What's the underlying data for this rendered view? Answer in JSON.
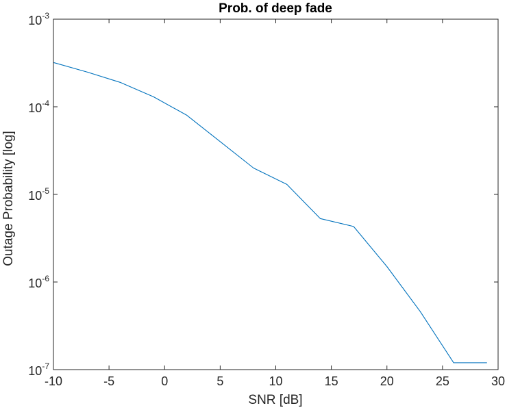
{
  "chart_data": {
    "type": "line",
    "title": "Prob. of deep fade",
    "xlabel": "SNR [dB]",
    "ylabel": "Outage Probability [log]",
    "xlim": [
      -10,
      30
    ],
    "ylim": [
      1e-07,
      0.001
    ],
    "yscale": "log",
    "grid": false,
    "x_ticks": [
      -10,
      -5,
      0,
      5,
      10,
      15,
      20,
      25,
      30
    ],
    "y_ticks": [
      {
        "value": 1e-07,
        "base": "10",
        "exp": "-7"
      },
      {
        "value": 1e-06,
        "base": "10",
        "exp": "-6"
      },
      {
        "value": 1e-05,
        "base": "10",
        "exp": "-5"
      },
      {
        "value": 0.0001,
        "base": "10",
        "exp": "-4"
      },
      {
        "value": 0.001,
        "base": "10",
        "exp": "-3"
      }
    ],
    "series": [
      {
        "color": "#0072bd",
        "x": [
          -10,
          -7,
          -4,
          -1,
          2,
          5,
          8,
          11,
          14,
          17,
          20,
          23,
          26,
          29
        ],
        "y": [
          0.00032,
          0.00025,
          0.00019,
          0.00013,
          8e-05,
          4e-05,
          2e-05,
          1.3e-05,
          5.3e-06,
          4.3e-06,
          1.5e-06,
          4.6e-07,
          1.2e-07,
          1.2e-07
        ]
      }
    ]
  },
  "colors": {
    "axis": "#262626",
    "line": "#0072bd",
    "background": "#ffffff"
  }
}
